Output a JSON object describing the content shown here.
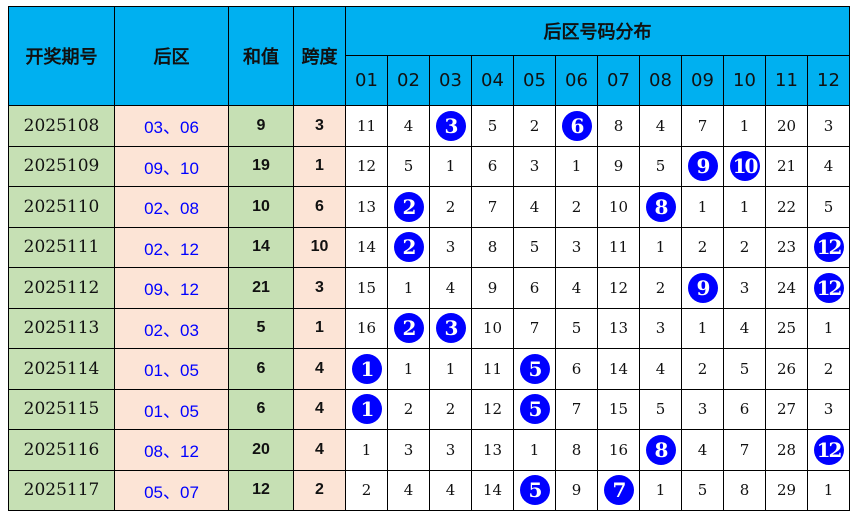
{
  "header": {
    "issue": "开奖期号",
    "back": "后区",
    "sum": "和值",
    "span": "跨度",
    "dist": "后区号码分布",
    "numbers": [
      "01",
      "02",
      "03",
      "04",
      "05",
      "06",
      "07",
      "08",
      "09",
      "10",
      "11",
      "12"
    ]
  },
  "colors": {
    "header": "#00b0f0",
    "green": "#c6e0b4",
    "pink": "#fce4d6",
    "ball": "#0000ff"
  },
  "rows": [
    {
      "issue": "2025108",
      "back": "03、06",
      "sum": "9",
      "span": "3",
      "cells": [
        "11",
        "4",
        "3",
        "5",
        "2",
        "6",
        "8",
        "4",
        "7",
        "1",
        "20",
        "3"
      ],
      "hits": [
        3,
        6
      ]
    },
    {
      "issue": "2025109",
      "back": "09、10",
      "sum": "19",
      "span": "1",
      "cells": [
        "12",
        "5",
        "1",
        "6",
        "3",
        "1",
        "9",
        "5",
        "9",
        "10",
        "21",
        "4"
      ],
      "hits": [
        9,
        10
      ]
    },
    {
      "issue": "2025110",
      "back": "02、08",
      "sum": "10",
      "span": "6",
      "cells": [
        "13",
        "2",
        "2",
        "7",
        "4",
        "2",
        "10",
        "8",
        "1",
        "1",
        "22",
        "5"
      ],
      "hits": [
        2,
        8
      ]
    },
    {
      "issue": "2025111",
      "back": "02、12",
      "sum": "14",
      "span": "10",
      "cells": [
        "14",
        "2",
        "3",
        "8",
        "5",
        "3",
        "11",
        "1",
        "2",
        "2",
        "23",
        "12"
      ],
      "hits": [
        2,
        12
      ]
    },
    {
      "issue": "2025112",
      "back": "09、12",
      "sum": "21",
      "span": "3",
      "cells": [
        "15",
        "1",
        "4",
        "9",
        "6",
        "4",
        "12",
        "2",
        "9",
        "3",
        "24",
        "12"
      ],
      "hits": [
        9,
        12
      ]
    },
    {
      "issue": "2025113",
      "back": "02、03",
      "sum": "5",
      "span": "1",
      "cells": [
        "16",
        "2",
        "3",
        "10",
        "7",
        "5",
        "13",
        "3",
        "1",
        "4",
        "25",
        "1"
      ],
      "hits": [
        2,
        3
      ]
    },
    {
      "issue": "2025114",
      "back": "01、05",
      "sum": "6",
      "span": "4",
      "cells": [
        "1",
        "1",
        "1",
        "11",
        "5",
        "6",
        "14",
        "4",
        "2",
        "5",
        "26",
        "2"
      ],
      "hits": [
        1,
        5
      ]
    },
    {
      "issue": "2025115",
      "back": "01、05",
      "sum": "6",
      "span": "4",
      "cells": [
        "1",
        "2",
        "2",
        "12",
        "5",
        "7",
        "15",
        "5",
        "3",
        "6",
        "27",
        "3"
      ],
      "hits": [
        1,
        5
      ]
    },
    {
      "issue": "2025116",
      "back": "08、12",
      "sum": "20",
      "span": "4",
      "cells": [
        "1",
        "3",
        "3",
        "13",
        "1",
        "8",
        "16",
        "8",
        "4",
        "7",
        "28",
        "12"
      ],
      "hits": [
        8,
        12
      ]
    },
    {
      "issue": "2025117",
      "back": "05、07",
      "sum": "12",
      "span": "2",
      "cells": [
        "2",
        "4",
        "4",
        "14",
        "5",
        "9",
        "7",
        "1",
        "5",
        "8",
        "29",
        "1"
      ],
      "hits": [
        5,
        7
      ]
    }
  ]
}
